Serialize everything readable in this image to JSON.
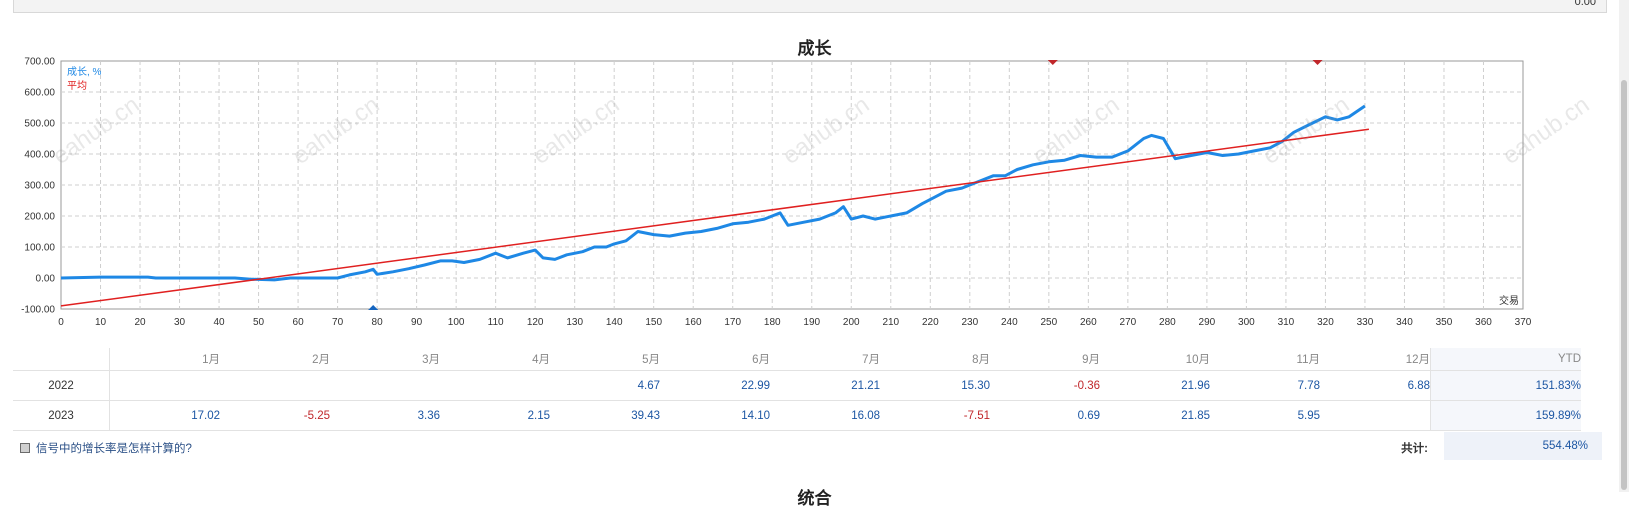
{
  "top_bar": {
    "value": "0.00"
  },
  "chart_data": {
    "type": "line",
    "title": "成长",
    "xlabel": "交易",
    "ylabel": "",
    "xlim": [
      0,
      370
    ],
    "ylim": [
      -100,
      700
    ],
    "x_ticks": [
      0,
      10,
      20,
      30,
      40,
      50,
      60,
      70,
      80,
      90,
      100,
      110,
      120,
      130,
      140,
      150,
      160,
      170,
      180,
      190,
      200,
      210,
      220,
      230,
      240,
      250,
      260,
      270,
      280,
      290,
      300,
      310,
      320,
      330,
      340,
      350,
      360,
      370
    ],
    "y_ticks": [
      -100,
      0,
      100,
      200,
      300,
      400,
      500,
      600,
      700
    ],
    "y_tick_labels": [
      "-100.00",
      "0.00",
      "100.00",
      "200.00",
      "300.00",
      "400.00",
      "500.00",
      "600.00",
      "700.00"
    ],
    "grid": true,
    "legend_position": "top-left",
    "series": [
      {
        "name": "成长, %",
        "color": "#1e88e5",
        "points": [
          [
            0,
            0
          ],
          [
            10,
            3
          ],
          [
            22,
            3
          ],
          [
            24,
            0
          ],
          [
            44,
            0
          ],
          [
            48,
            -4
          ],
          [
            54,
            -6
          ],
          [
            58,
            0
          ],
          [
            70,
            0
          ],
          [
            73,
            10
          ],
          [
            77,
            20
          ],
          [
            79,
            28
          ],
          [
            80,
            12
          ],
          [
            84,
            20
          ],
          [
            88,
            30
          ],
          [
            92,
            42
          ],
          [
            96,
            55
          ],
          [
            99,
            55
          ],
          [
            102,
            50
          ],
          [
            106,
            60
          ],
          [
            110,
            80
          ],
          [
            113,
            65
          ],
          [
            117,
            80
          ],
          [
            120,
            90
          ],
          [
            122,
            65
          ],
          [
            125,
            60
          ],
          [
            128,
            75
          ],
          [
            132,
            85
          ],
          [
            135,
            100
          ],
          [
            138,
            100
          ],
          [
            140,
            110
          ],
          [
            143,
            120
          ],
          [
            146,
            150
          ],
          [
            150,
            140
          ],
          [
            154,
            135
          ],
          [
            158,
            145
          ],
          [
            162,
            150
          ],
          [
            166,
            160
          ],
          [
            170,
            175
          ],
          [
            174,
            180
          ],
          [
            178,
            190
          ],
          [
            182,
            210
          ],
          [
            184,
            170
          ],
          [
            188,
            180
          ],
          [
            192,
            190
          ],
          [
            196,
            210
          ],
          [
            198,
            230
          ],
          [
            200,
            190
          ],
          [
            203,
            200
          ],
          [
            206,
            190
          ],
          [
            210,
            200
          ],
          [
            214,
            210
          ],
          [
            218,
            240
          ],
          [
            221,
            260
          ],
          [
            224,
            280
          ],
          [
            228,
            290
          ],
          [
            232,
            310
          ],
          [
            236,
            330
          ],
          [
            239,
            330
          ],
          [
            242,
            350
          ],
          [
            246,
            365
          ],
          [
            250,
            375
          ],
          [
            254,
            380
          ],
          [
            258,
            395
          ],
          [
            262,
            390
          ],
          [
            266,
            390
          ],
          [
            270,
            410
          ],
          [
            274,
            450
          ],
          [
            276,
            460
          ],
          [
            279,
            450
          ],
          [
            282,
            385
          ],
          [
            286,
            395
          ],
          [
            290,
            405
          ],
          [
            294,
            395
          ],
          [
            298,
            400
          ],
          [
            302,
            410
          ],
          [
            306,
            420
          ],
          [
            309,
            440
          ],
          [
            312,
            470
          ],
          [
            316,
            495
          ],
          [
            320,
            520
          ],
          [
            323,
            510
          ],
          [
            326,
            520
          ],
          [
            330,
            555
          ]
        ]
      },
      {
        "name": "平均",
        "color": "#e02020",
        "points": [
          [
            0,
            -90
          ],
          [
            331,
            480
          ]
        ]
      }
    ],
    "markers": {
      "bottom_blue": [
        79
      ],
      "top_red": [
        251,
        318
      ]
    }
  },
  "table": {
    "months": [
      "1月",
      "2月",
      "3月",
      "4月",
      "5月",
      "6月",
      "7月",
      "8月",
      "9月",
      "10月",
      "11月",
      "12月"
    ],
    "ytd_header": "YTD",
    "rows": [
      {
        "year": "2022",
        "values": [
          "",
          "",
          "",
          "",
          "4.67",
          "22.99",
          "21.21",
          "15.30",
          "-0.36",
          "21.96",
          "7.78",
          "6.88"
        ],
        "ytd": "151.83%"
      },
      {
        "year": "2023",
        "values": [
          "17.02",
          "-5.25",
          "3.36",
          "2.15",
          "39.43",
          "14.10",
          "16.08",
          "-7.51",
          "0.69",
          "21.85",
          "5.95",
          ""
        ],
        "ytd": "159.89%"
      }
    ]
  },
  "footer": {
    "help_link": "信号中的增长率是怎样计算的?",
    "total_label": "共计:",
    "total_value": "554.48%"
  },
  "next_section_title": "统合",
  "watermark": "eahub.cn"
}
